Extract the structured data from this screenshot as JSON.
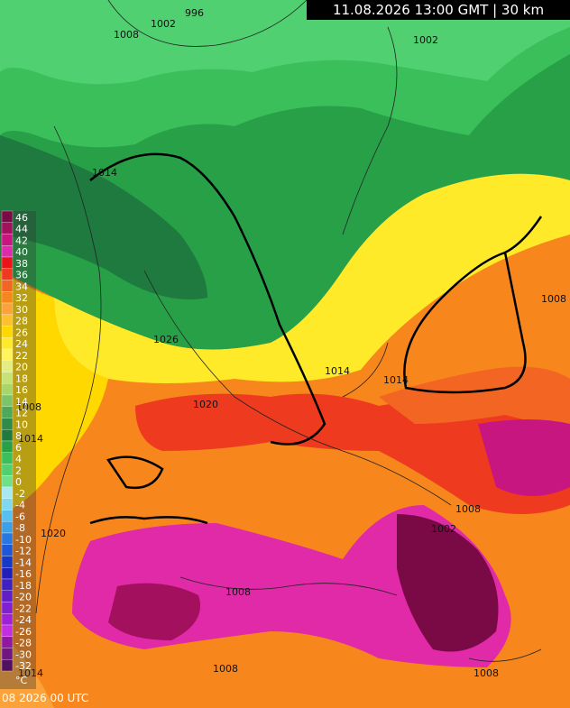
{
  "header": "11.08.2026 13:00 GMT | 30 km",
  "footer": "08 2026 00 UTC",
  "legend": {
    "unit": "°C",
    "labels": [
      46,
      44,
      42,
      40,
      38,
      36,
      34,
      32,
      30,
      28,
      26,
      24,
      22,
      20,
      18,
      16,
      14,
      12,
      10,
      8,
      6,
      4,
      2,
      0,
      -2,
      -4,
      -6,
      -8,
      -10,
      -12,
      -14,
      -16,
      -18,
      -20,
      -22,
      -24,
      -26,
      -28,
      -30,
      -32
    ],
    "colors": [
      "#7a0a46",
      "#a3105e",
      "#c81680",
      "#e02aa8",
      "#e8141a",
      "#ee3a1e",
      "#f26522",
      "#f7861d",
      "#fba23b",
      "#fdc02f",
      "#ffd800",
      "#ffea2a",
      "#fff35e",
      "#e2ee84",
      "#c6e37a",
      "#a6d66c",
      "#7cc468",
      "#4ea85a",
      "#2e8b4a",
      "#1e7a3e",
      "#27a048",
      "#3bbf5a",
      "#50d070",
      "#6ee08a",
      "#a8e8f0",
      "#80d8f0",
      "#58c0f0",
      "#3aa0e8",
      "#2878e0",
      "#1e58d8",
      "#1838c8",
      "#2020b8",
      "#4020c0",
      "#6020c8",
      "#8020d0",
      "#a020d8",
      "#c030e0",
      "#9018a0",
      "#701880",
      "#501060"
    ]
  },
  "isobar_labels": [
    "996",
    "1002",
    "1008",
    "1002",
    "1014",
    "1026",
    "1008",
    "1014",
    "1020",
    "1014",
    "1014",
    "1008",
    "1008",
    "1002",
    "1008",
    "1008",
    "1008",
    "1014",
    "1020"
  ]
}
